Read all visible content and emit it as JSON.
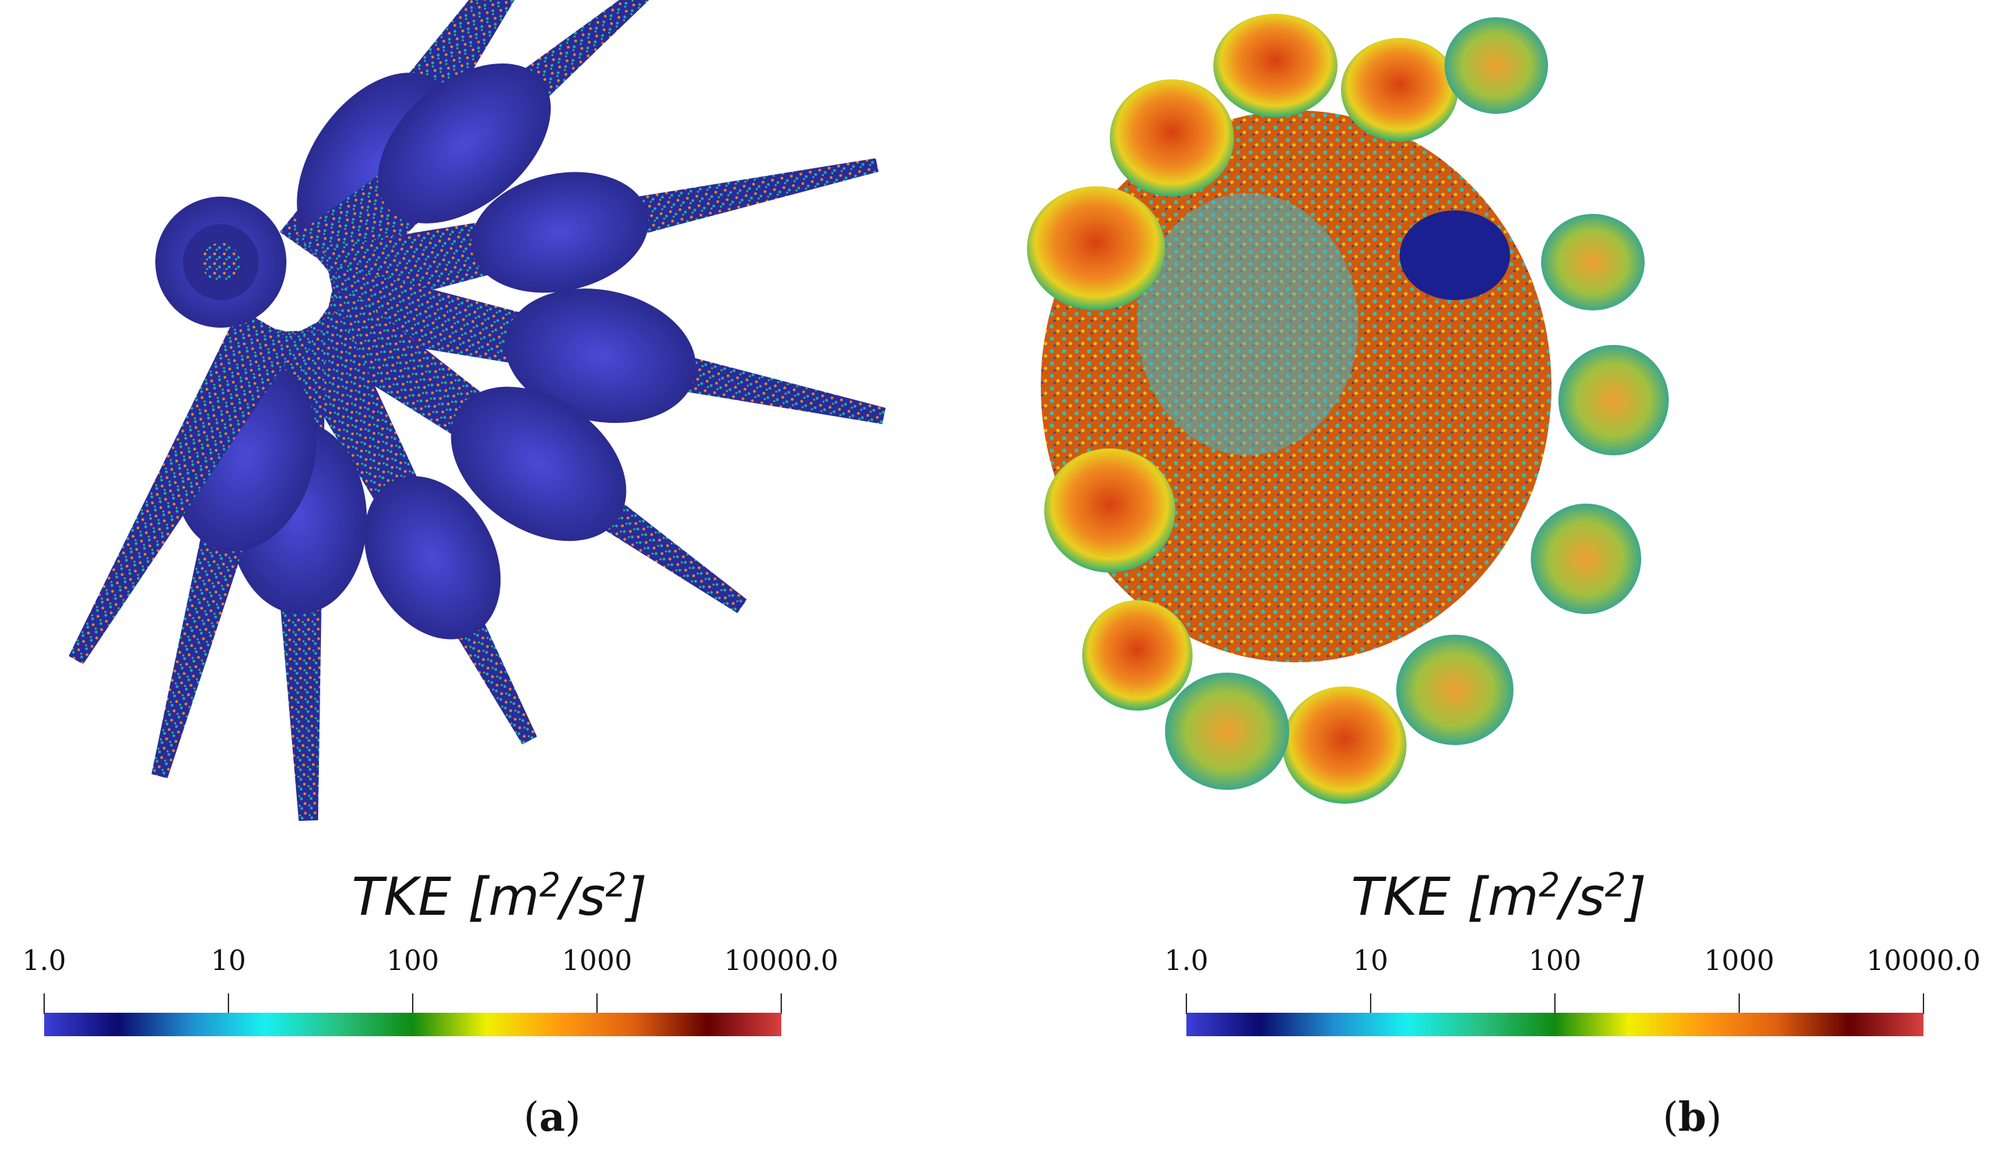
{
  "colorbar": {
    "title_main": "TKE [m",
    "title_sup1": "2",
    "title_mid": "/s",
    "title_sup2": "2",
    "title_end": "]",
    "ticks": [
      "1.0",
      "10",
      "100",
      "1000",
      "10000.0"
    ],
    "scale": "log",
    "range": [
      1.0,
      10000.0
    ],
    "colors": [
      "#3b3fd8",
      "#0a0a6e",
      "#1f8fd0",
      "#18f0f0",
      "#28c080",
      "#108a10",
      "#f0f000",
      "#ff9a10",
      "#e06010",
      "#650000",
      "#d84040"
    ]
  },
  "panels": [
    {
      "caption_open": "(",
      "caption_letter": "a",
      "caption_close": ")"
    },
    {
      "caption_open": "(",
      "caption_letter": "b",
      "caption_close": ")"
    }
  ]
}
